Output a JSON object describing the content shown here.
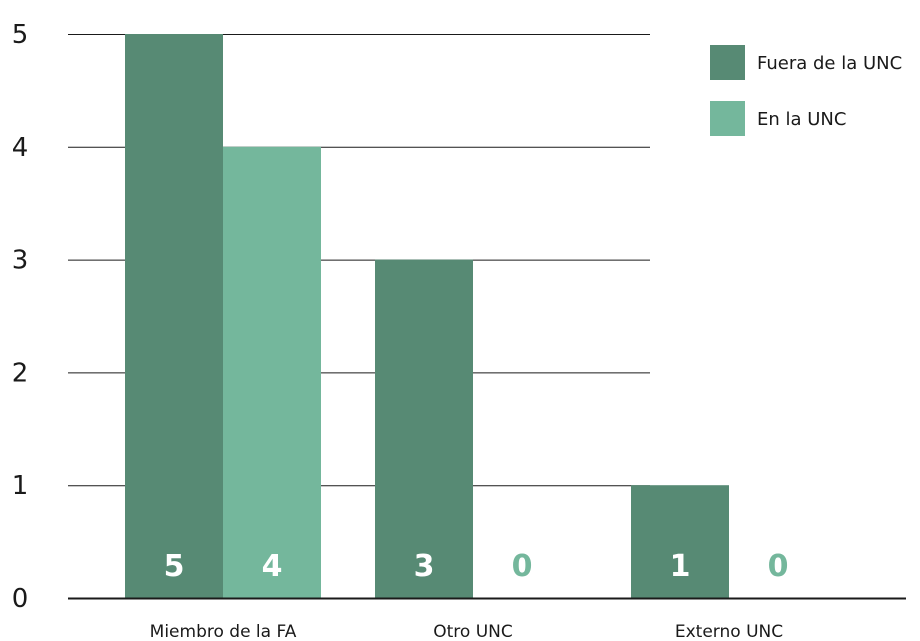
{
  "chart_data": {
    "type": "bar",
    "title": "",
    "xlabel": "",
    "ylabel": "",
    "categories": [
      "Miembro de la FA",
      "Otro UNC",
      "Externo UNC"
    ],
    "series": [
      {
        "name": "Fuera de la UNC",
        "values": [
          5,
          3,
          1
        ],
        "color": "#578a74"
      },
      {
        "name": "En la UNC",
        "values": [
          4,
          0,
          0
        ],
        "color": "#74b79c"
      }
    ],
    "ylim": [
      0,
      5
    ],
    "yticks": [
      "0",
      "1",
      "2",
      "3",
      "4",
      "5"
    ],
    "data_labels": [
      [
        "5",
        "3",
        "1"
      ],
      [
        "4",
        "0",
        "0"
      ]
    ],
    "grid": true,
    "legend_position": "top-right"
  }
}
